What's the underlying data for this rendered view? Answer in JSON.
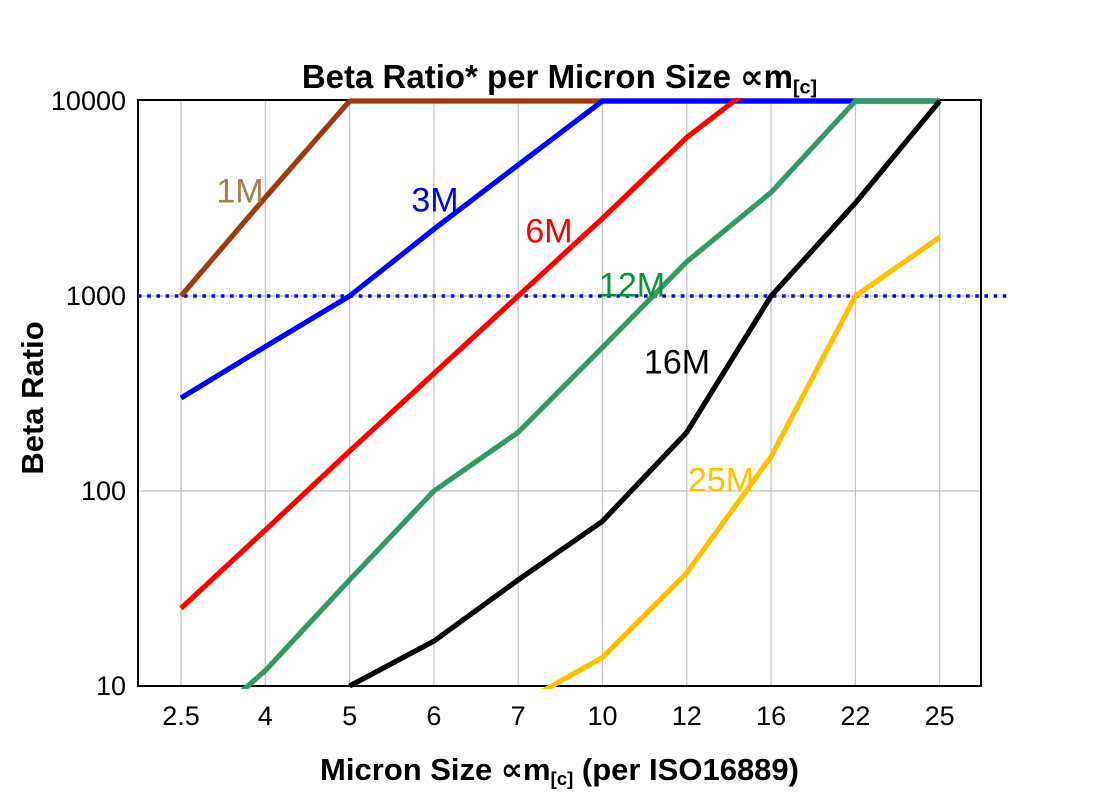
{
  "chart_data": {
    "type": "line",
    "title": "Beta Ratio* per Micron Size ∝m[c]",
    "title_parts": {
      "prefix": "Beta Ratio* per Micron Size ",
      "sym": "∝m",
      "sub": "[c]"
    },
    "xlabel": "Micron Size ∝m[c] (per ISO16889)",
    "xlabel_parts": {
      "prefix": "Micron Size ",
      "sym": "∝m",
      "sub": "[c]",
      "suffix": " (per ISO16889)"
    },
    "ylabel": "Beta Ratio",
    "x_categories": [
      "2.5",
      "4",
      "5",
      "6",
      "7",
      "10",
      "12",
      "16",
      "22",
      "25"
    ],
    "y_axis": {
      "scale": "log",
      "min": 10,
      "max": 10000,
      "ticks": [
        "10",
        "100",
        "1000",
        "10000"
      ],
      "tick_values": [
        10,
        100,
        1000,
        10000
      ],
      "gridline_values": [
        100,
        1000
      ]
    },
    "grid": {
      "vertical": true,
      "horizontal": true,
      "color": "#c4c4c4"
    },
    "legend_position": "labels-on-lines",
    "reference_line": {
      "value": 1000,
      "style": "dotted",
      "color": "#0b0bce",
      "label": ""
    },
    "note": "values estimated from pixels; points outside 10-10000 range are clipped by the plot area",
    "series": [
      {
        "name": "1M",
        "color": "#9c3b0e",
        "label": "1M",
        "label_color": "#a87e50",
        "label_pos": [
          240,
          192
        ],
        "points": [
          [
            "2.5",
            1000
          ],
          [
            "4",
            3200
          ],
          [
            "5",
            10000
          ],
          [
            "25",
            10000
          ]
        ]
      },
      {
        "name": "3M",
        "color": "#0000ff",
        "label": "3M",
        "label_color": "#0000ff",
        "label_pos": [
          435,
          201
        ],
        "points": [
          [
            "2.5",
            300
          ],
          [
            "4",
            550
          ],
          [
            "5",
            1000
          ],
          [
            "6",
            2200
          ],
          [
            "7",
            4700
          ],
          [
            "10",
            10000
          ],
          [
            "25",
            10000
          ]
        ]
      },
      {
        "name": "6M",
        "color": "#ff0000",
        "label": "6M",
        "label_color": "#ff0000",
        "label_pos": [
          549,
          232
        ],
        "points": [
          [
            "2.5",
            25
          ],
          [
            "4",
            63
          ],
          [
            "5",
            160
          ],
          [
            "6",
            400
          ],
          [
            "7",
            1000
          ],
          [
            "10",
            2500
          ],
          [
            "12",
            6500
          ],
          [
            "16",
            14000
          ]
        ]
      },
      {
        "name": "12M",
        "color": "#339966",
        "label": "12M",
        "label_color": "#009933",
        "label_pos": [
          632,
          286
        ],
        "points": [
          [
            "2.5",
            5
          ],
          [
            "4",
            12
          ],
          [
            "5",
            35
          ],
          [
            "6",
            100
          ],
          [
            "7",
            200
          ],
          [
            "10",
            545
          ],
          [
            "12",
            1500
          ],
          [
            "16",
            3400
          ],
          [
            "22",
            10000
          ],
          [
            "25",
            10000
          ]
        ]
      },
      {
        "name": "16M",
        "color": "#000000",
        "label": "16M",
        "label_color": "#000000",
        "label_pos": [
          677,
          363
        ],
        "points": [
          [
            "5",
            10
          ],
          [
            "6",
            17
          ],
          [
            "7",
            35
          ],
          [
            "10",
            70
          ],
          [
            "12",
            200
          ],
          [
            "16",
            1000
          ],
          [
            "22",
            3000
          ],
          [
            "25",
            10000
          ]
        ]
      },
      {
        "name": "25M",
        "color": "#ffc000",
        "label": "25M",
        "label_color": "#ffc000",
        "label_pos": [
          721,
          481
        ],
        "points": [
          [
            "7",
            8
          ],
          [
            "10",
            14
          ],
          [
            "12",
            38
          ],
          [
            "16",
            150
          ],
          [
            "22",
            1000
          ],
          [
            "25",
            2000
          ]
        ]
      }
    ]
  }
}
